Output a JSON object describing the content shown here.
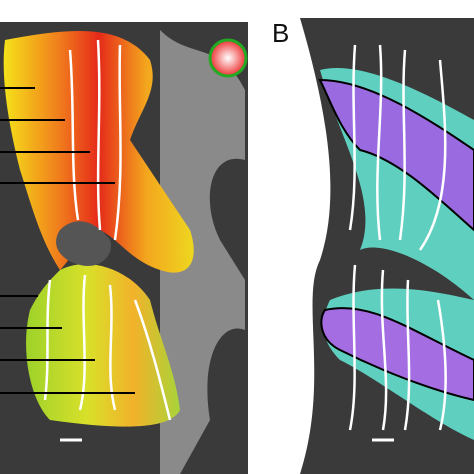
{
  "panel_label": "B"
}
